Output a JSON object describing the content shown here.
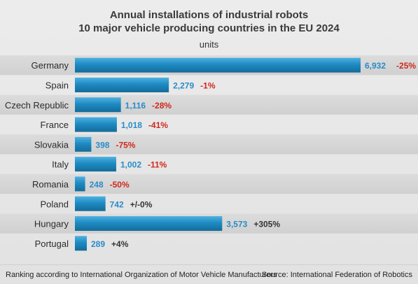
{
  "chart_data": {
    "type": "bar",
    "orientation": "horizontal",
    "title": "Annual installations of industrial robots",
    "subtitle": "10 major vehicle producing countries in the EU 2024",
    "unit_label": "units",
    "categories": [
      "Germany",
      "Spain",
      "Czech Republic",
      "France",
      "Slovakia",
      "Italy",
      "Romania",
      "Poland",
      "Hungary",
      "Portugal"
    ],
    "values": [
      6932,
      2279,
      1116,
      1018,
      398,
      1002,
      248,
      742,
      3573,
      289
    ],
    "value_labels": [
      "6,932",
      "2,279",
      "1,116",
      "1,018",
      "398",
      "1,002",
      "248",
      "742",
      "3,573",
      "289"
    ],
    "changes": [
      "-25%",
      "-1%",
      "-28%",
      "-41%",
      "-75%",
      "-11%",
      "-50%",
      "+/-0%",
      "+305%",
      "+4%"
    ],
    "change_colors": [
      "#d0281c",
      "#d0281c",
      "#d0281c",
      "#d0281c",
      "#d0281c",
      "#d0281c",
      "#d0281c",
      "#333333",
      "#333333",
      "#333333"
    ],
    "bar_color": "#1e8bc3",
    "value_label_color": "#2a8cc8",
    "xlim": [
      0,
      6932
    ],
    "grid": false
  },
  "footer": {
    "left": "Ranking according to International Organization of Motor Vehicle Manufacturers",
    "right": "Source: International Federation of Robotics"
  }
}
